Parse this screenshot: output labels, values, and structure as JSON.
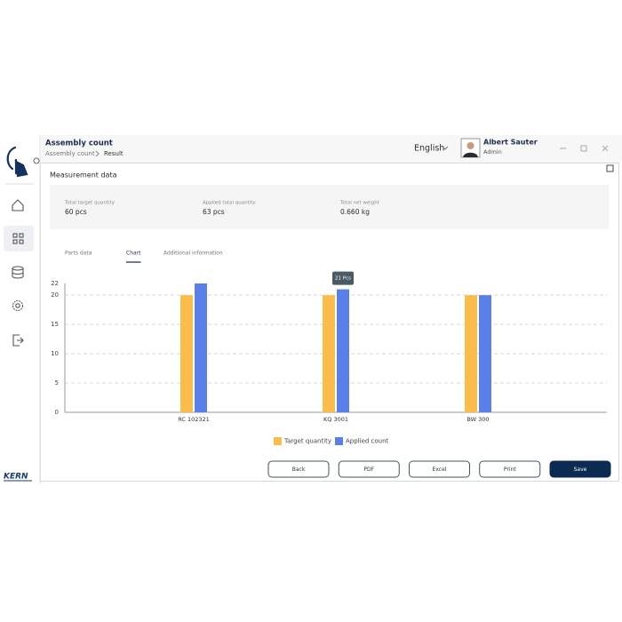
{
  "app": {
    "title": "Assembly count",
    "breadcrumb": [
      "Assembly count",
      "Result"
    ],
    "language": "English",
    "user": {
      "name": "Albert Sauter",
      "role": "Admin"
    },
    "logo": "KERN"
  },
  "section_title": "Measurement data",
  "summary": [
    {
      "label": "Total target quantity",
      "value": "60 pcs"
    },
    {
      "label": "Applied total quantity",
      "value": "63 pcs"
    },
    {
      "label": "Total net weight",
      "value": "0.660 kg"
    }
  ],
  "tabs": [
    "Parts data",
    "Chart",
    "Additional information"
  ],
  "active_tab": 1,
  "chart_data": {
    "type": "bar",
    "categories": [
      "RC 102321",
      "KQ 3001",
      "BW 300"
    ],
    "series": [
      {
        "name": "Target quantity",
        "color": "#f8bd4b",
        "values": [
          20,
          20,
          20
        ]
      },
      {
        "name": "Applied count",
        "color": "#5a7fe6",
        "values": [
          22,
          21,
          20
        ]
      }
    ],
    "ylim": [
      0,
      22
    ],
    "yticks": [
      0,
      5,
      10,
      15,
      20,
      22
    ],
    "grid": true,
    "tooltip": {
      "series": 1,
      "index": 1,
      "label": "21 Pcs"
    }
  },
  "buttons": [
    "Back",
    "PDF",
    "Excel",
    "Print",
    "Save"
  ]
}
